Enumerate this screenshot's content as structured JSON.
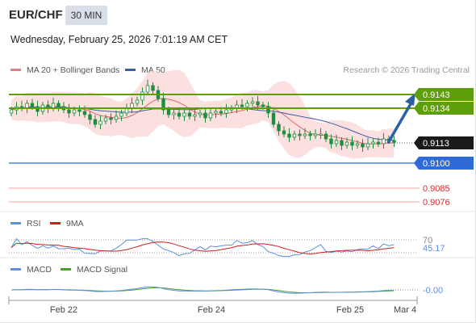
{
  "header": {
    "symbol": "EUR/CHF",
    "timeframe": "30 MIN",
    "datetime": "Wednesday, February 25, 2026 7:01:19 AM CET"
  },
  "legend": {
    "ma20": "MA 20 + Bollinger Bands",
    "ma50": "MA 50",
    "credit": "Research © 2026 Trading Central",
    "rsi": "RSI",
    "rsi_ma": "9MA",
    "macd": "MACD",
    "macd_signal": "MACD Signal"
  },
  "colors": {
    "candle": "#1e8e3e",
    "ma20": "#e06666",
    "ma50": "#3c5ea6",
    "band_fill": "#fbd5d5",
    "target": "#5e9e0b",
    "pivot": "#2f6bd6",
    "support": "#e97c7c",
    "arrow": "#2b5fa8",
    "rsi": "#5b8fe0",
    "rsi_ma": "#cc1f1f",
    "macd": "#5b8fe0",
    "macd_signal": "#4aa02c",
    "last_price_bg": "#1a1a1a"
  },
  "chart_data": [
    {
      "type": "line",
      "panel": "price",
      "x_ticks": [
        "Feb 22",
        "Feb 24",
        "Feb 25",
        "Mar 4"
      ],
      "last_price": 0.9113,
      "levels": [
        {
          "label": "0.9143",
          "value": 0.9143,
          "role": "target"
        },
        {
          "label": "0.9134",
          "value": 0.9134,
          "role": "target"
        },
        {
          "label": "0.9100",
          "value": 0.91,
          "role": "pivot"
        },
        {
          "label": "0.9085",
          "value": 0.9085,
          "role": "support"
        },
        {
          "label": "0.9076",
          "value": 0.9076,
          "role": "support"
        }
      ],
      "close": [
        0.9133,
        0.9135,
        0.9134,
        0.9137,
        0.9135,
        0.9132,
        0.9136,
        0.9134,
        0.9137,
        0.9135,
        0.9133,
        0.9131,
        0.9133,
        0.9132,
        0.913,
        0.9127,
        0.9124,
        0.9126,
        0.9128,
        0.9127,
        0.9129,
        0.9131,
        0.9134,
        0.9137,
        0.9139,
        0.9144,
        0.9148,
        0.9145,
        0.914,
        0.9133,
        0.913,
        0.9131,
        0.9129,
        0.9131,
        0.9129,
        0.913,
        0.9131,
        0.9128,
        0.9131,
        0.9132,
        0.9131,
        0.9133,
        0.9134,
        0.9136,
        0.9135,
        0.9137,
        0.9138,
        0.9136,
        0.9135,
        0.9131,
        0.9124,
        0.912,
        0.9118,
        0.9116,
        0.9118,
        0.9117,
        0.9118,
        0.9117,
        0.9118,
        0.9118,
        0.9115,
        0.9112,
        0.9114,
        0.9111,
        0.9113,
        0.9111,
        0.9112,
        0.911,
        0.9112,
        0.9113,
        0.9112,
        0.9115,
        0.9114,
        0.9113
      ]
    },
    {
      "type": "line",
      "panel": "rsi",
      "series": [
        {
          "name": "RSI"
        },
        {
          "name": "9MA"
        }
      ],
      "y_ticks": [
        "70"
      ],
      "last_value": "45.17"
    },
    {
      "type": "line",
      "panel": "macd",
      "series": [
        {
          "name": "MACD"
        },
        {
          "name": "MACD Signal"
        }
      ],
      "last_value": "-0.00"
    }
  ]
}
